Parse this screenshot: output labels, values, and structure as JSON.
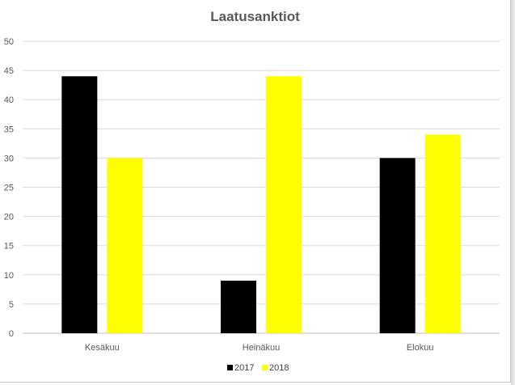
{
  "chart_data": {
    "type": "bar",
    "title": "Laatusanktiot",
    "categories": [
      "Kesäkuu",
      "Heinäkuu",
      "Elokuu"
    ],
    "series": [
      {
        "name": "2017",
        "color": "#000000",
        "values": [
          44,
          9,
          30
        ]
      },
      {
        "name": "2018",
        "color": "#ffff00",
        "values": [
          30,
          44,
          34
        ]
      }
    ],
    "ylim": [
      0,
      50
    ],
    "yticks": [
      "0",
      "5",
      "10",
      "15",
      "20",
      "25",
      "30",
      "35",
      "40",
      "45",
      "50"
    ],
    "grid": true,
    "legend_position": "bottom"
  }
}
